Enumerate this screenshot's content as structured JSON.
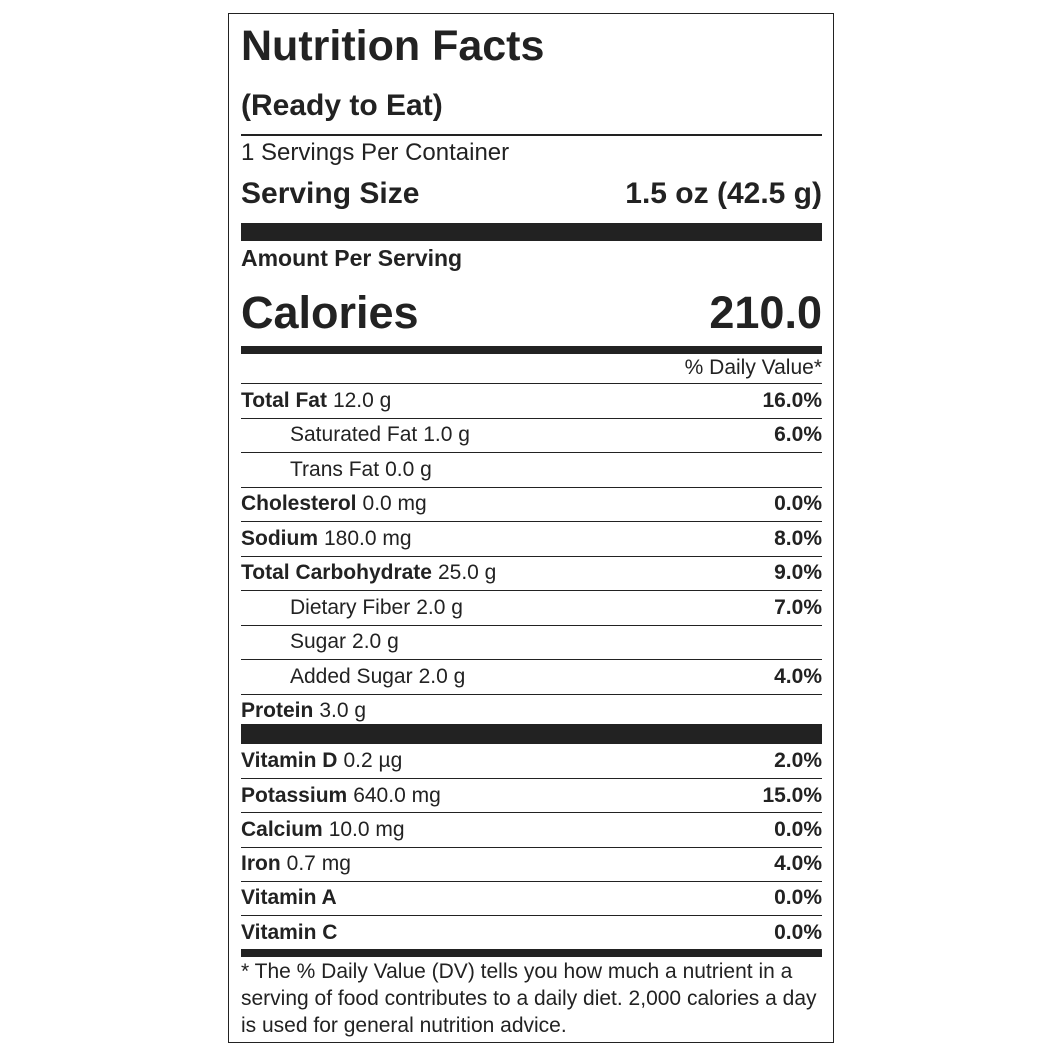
{
  "title": "Nutrition Facts",
  "subtitle": "(Ready to Eat)",
  "servings": "1 Servings Per Container",
  "serving_size": {
    "label": "Serving Size",
    "value": "1.5 oz (42.5 g)"
  },
  "amount_per_serving": "Amount Per Serving",
  "calories": {
    "label": "Calories",
    "value": "210.0"
  },
  "daily_value_header": "% Daily Value*",
  "nutrients": [
    {
      "name": "Total Fat",
      "amount": "12.0 g",
      "daily_value": "16.0%",
      "indent": false
    },
    {
      "name": "Saturated Fat",
      "amount": "1.0 g",
      "daily_value": "6.0%",
      "indent": true
    },
    {
      "name": "Trans Fat",
      "amount": "0.0 g",
      "indent": true
    },
    {
      "name": "Cholesterol",
      "amount": "0.0 mg",
      "daily_value": "0.0%",
      "indent": false
    },
    {
      "name": "Sodium",
      "amount": "180.0 mg",
      "daily_value": "8.0%",
      "indent": false
    },
    {
      "name": "Total Carbohydrate",
      "amount": "25.0 g",
      "daily_value": "9.0%",
      "indent": false
    },
    {
      "name": "Dietary Fiber",
      "amount": "2.0 g",
      "daily_value": "7.0%",
      "indent": true
    },
    {
      "name": "Sugar",
      "amount": "2.0 g",
      "indent": true
    },
    {
      "name": "Added Sugar",
      "amount": "2.0 g",
      "daily_value": "4.0%",
      "indent": true
    },
    {
      "name": "Protein",
      "amount": "3.0 g",
      "indent": false
    }
  ],
  "vitamins": [
    {
      "name": "Vitamin D",
      "amount": "0.2 µg",
      "daily_value": "2.0%"
    },
    {
      "name": "Potassium",
      "amount": "640.0 mg",
      "daily_value": "15.0%"
    },
    {
      "name": "Calcium",
      "amount": "10.0 mg",
      "daily_value": "0.0%"
    },
    {
      "name": "Iron",
      "amount": "0.7 mg",
      "daily_value": "4.0%"
    },
    {
      "name": "Vitamin A",
      "daily_value": "0.0%"
    },
    {
      "name": "Vitamin C",
      "daily_value": "0.0%"
    }
  ],
  "footnote": "* The % Daily Value (DV) tells you how much a nutrient in a serving of food contributes to a daily diet. 2,000 calories a day is used for general nutrition advice."
}
